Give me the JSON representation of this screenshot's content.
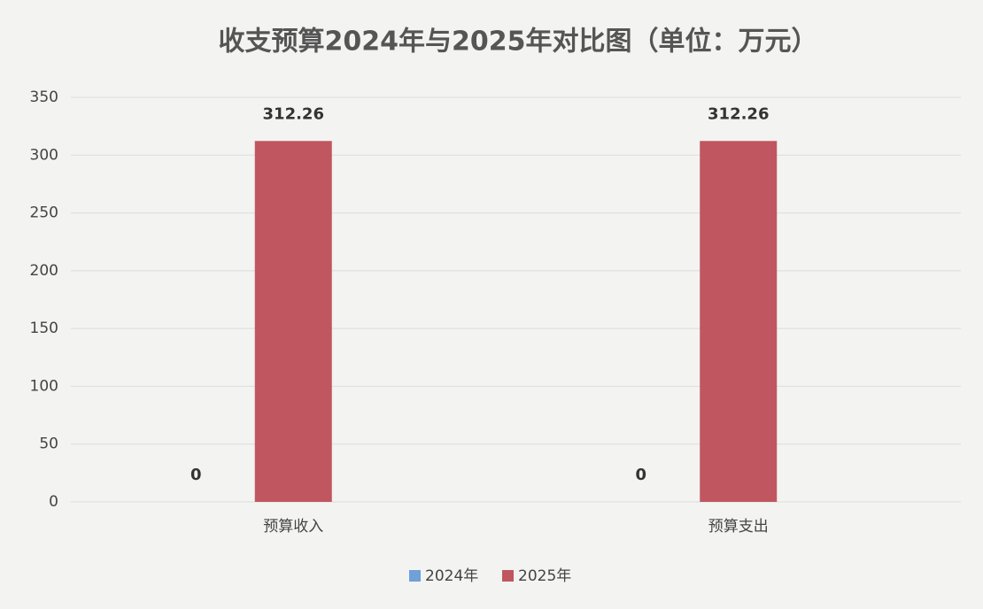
{
  "chart_data": {
    "type": "bar",
    "title": "收支预算2024年与2025年对比图（单位：万元）",
    "categories": [
      "预算收入",
      "预算支出"
    ],
    "series": [
      {
        "name": "2024年",
        "color": "#6fa0d8",
        "values": [
          0,
          0
        ]
      },
      {
        "name": "2025年",
        "color": "#c0565f",
        "values": [
          312.26,
          312.26
        ]
      }
    ],
    "ylim": [
      0,
      350
    ],
    "yticks": [
      0,
      50,
      100,
      150,
      200,
      250,
      300,
      350
    ],
    "grid": true,
    "legend": "bottom"
  }
}
